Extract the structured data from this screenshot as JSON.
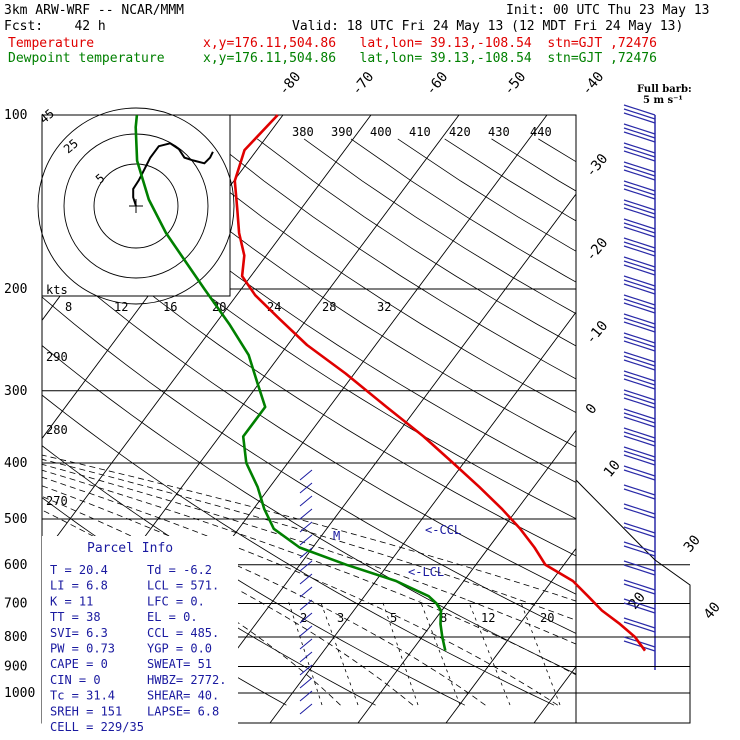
{
  "header": {
    "model": "3km ARW-WRF -- NCAR/MMM",
    "init": "Init: 00 UTC Thu 23 May 13",
    "fcst": "Fcst:    42 h",
    "valid": "Valid: 18 UTC Fri 24 May 13 (12 MDT Fri 24 May 13)",
    "temperature_label": "Temperature",
    "dewpoint_label": "Dewpoint temperature",
    "location": "x,y=176.11,504.86   lat,lon= 39.13,-108.54  stn=GJT ,72476"
  },
  "colors": {
    "temperature": "#e00000",
    "dewpoint": "#008000",
    "parcel_text": "#1a1aa0",
    "barbs": "#2a2aa8"
  },
  "chart_data": {
    "type": "line",
    "diagram": "skew-T log-p",
    "y_axis": {
      "label": "pressure (hPa)",
      "scale": "log",
      "ticks": [
        100,
        200,
        300,
        400,
        500,
        600,
        700,
        800,
        900,
        1000
      ]
    },
    "isotherm_labels": [
      -80,
      -70,
      -60,
      -50,
      -40,
      -30,
      -20,
      -10,
      0,
      10,
      20,
      30,
      40
    ],
    "theta_labels": [
      270,
      280,
      290,
      380,
      390,
      400,
      410,
      420,
      430,
      440
    ],
    "mixing_ratio_labels": [
      2,
      3,
      5,
      8,
      12,
      20
    ],
    "hodograph": {
      "speed_unit": "kts",
      "ring_labels": [
        5,
        25,
        45
      ],
      "speed_axis": [
        8,
        12,
        16,
        20,
        24,
        28,
        32
      ],
      "u_kts": [
        0,
        -1,
        -1,
        1,
        3,
        5,
        8,
        12,
        15,
        17,
        20,
        24,
        26,
        27
      ],
      "v_kts": [
        0,
        3,
        6,
        9,
        13,
        17,
        21,
        22,
        20,
        17,
        16,
        15,
        17,
        19
      ]
    },
    "series": [
      {
        "name": "Temperature",
        "pressure": [
          845,
          800,
          760,
          720,
          680,
          640,
          600,
          560,
          520,
          480,
          440,
          400,
          360,
          320,
          280,
          250,
          225,
          205,
          190,
          175,
          160,
          145,
          130,
          115,
          100
        ],
        "values": [
          16.5,
          14.2,
          11.4,
          8.2,
          5.4,
          2.4,
          -2.1,
          -4.8,
          -8.0,
          -11.8,
          -16.2,
          -21.2,
          -26.8,
          -33.5,
          -41.0,
          -47.8,
          -53.2,
          -57.9,
          -61.0,
          -62.5,
          -65.0,
          -67.3,
          -69.9,
          -71.4,
          -70.6
        ]
      },
      {
        "name": "Dewpoint temperature",
        "pressure": [
          845,
          800,
          760,
          720,
          700,
          680,
          640,
          600,
          560,
          520,
          480,
          440,
          400,
          360,
          320,
          290,
          260,
          230,
          200,
          180,
          160,
          140,
          120,
          105,
          100
        ],
        "values": [
          -6.2,
          -7.7,
          -9.0,
          -10.1,
          -11.2,
          -12.7,
          -17.7,
          -24.7,
          -31.5,
          -36.0,
          -38.8,
          -41.4,
          -44.7,
          -47.3,
          -47.3,
          -50.3,
          -53.6,
          -58.4,
          -64.2,
          -68.5,
          -73.3,
          -78.1,
          -82.7,
          -85.7,
          -86.6
        ]
      }
    ],
    "annotations": [
      "M",
      "<-CCL",
      "<-LCL"
    ],
    "barb_legend": {
      "title": "Full barb:",
      "value": "5 m s⁻¹"
    }
  },
  "parcel_info": {
    "title": "Parcel Info",
    "rows": [
      {
        "a": "T  =    20.4",
        "b": "Td =  -6.2"
      },
      {
        "a": "LI =     6.8",
        "b": "LCL = 571."
      },
      {
        "a": "K  =      11",
        "b": "LFC =   0."
      },
      {
        "a": "TT =      38",
        "b": "EL  =   0."
      },
      {
        "a": "SVI=     6.3",
        "b": "CCL = 485."
      },
      {
        "a": "PW =    0.73",
        "b": "YGP = 0.0"
      },
      {
        "a": "CAPE =     0",
        "b": "SWEAT=  51"
      },
      {
        "a": "CIN =      0",
        "b": "HWBZ= 2772."
      },
      {
        "a": "Tc =    31.4",
        "b": "SHEAR=  40."
      },
      {
        "a": "SREH =   151",
        "b": "LAPSE=  6.8"
      },
      {
        "a": "CELL = 229/35",
        "b": ""
      }
    ]
  }
}
